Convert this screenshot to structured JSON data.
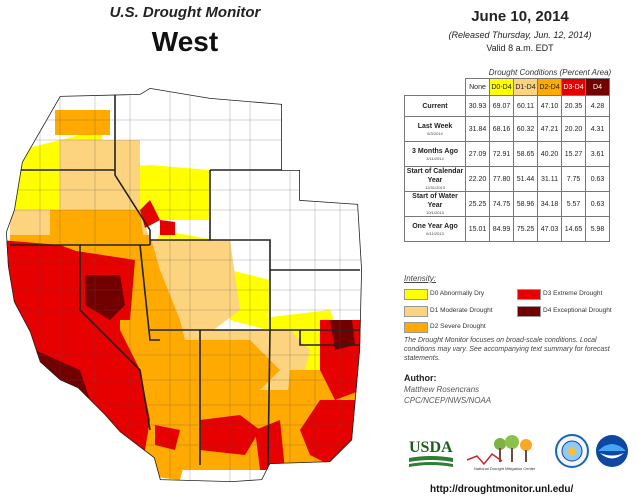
{
  "header": {
    "product": "U.S. Drought Monitor",
    "region": "West",
    "date": "June 10, 2014",
    "released": "(Released Thursday, Jun. 12, 2014)",
    "valid": "Valid  8 a.m. EDT"
  },
  "table": {
    "caption": "Drought Conditions (Percent Area)",
    "columns": [
      "None",
      "D0-D4",
      "D1-D4",
      "D2-D4",
      "D3-D4",
      "D4"
    ],
    "column_colors": [
      "#ffffff",
      "#ffff00",
      "#fcd37f",
      "#ffaa00",
      "#e60000",
      "#730000"
    ],
    "rows": [
      {
        "label": "Current",
        "sub": "",
        "values": [
          "30.93",
          "69.07",
          "60.11",
          "47.10",
          "20.35",
          "4.28"
        ]
      },
      {
        "label": "Last Week",
        "sub": "6/3/2014",
        "values": [
          "31.84",
          "68.16",
          "60.32",
          "47.21",
          "20.20",
          "4.31"
        ]
      },
      {
        "label": "3 Months Ago",
        "sub": "3/11/2014",
        "values": [
          "27.09",
          "72.91",
          "58.65",
          "40.20",
          "15.27",
          "3.61"
        ]
      },
      {
        "label": "Start of Calendar Year",
        "sub": "12/31/2013",
        "values": [
          "22.20",
          "77.80",
          "51.44",
          "31.11",
          "7.75",
          "0.63"
        ]
      },
      {
        "label": "Start of Water Year",
        "sub": "10/1/2013",
        "values": [
          "25.25",
          "74.75",
          "58.96",
          "34.18",
          "5.57",
          "0.63"
        ]
      },
      {
        "label": "One Year Ago",
        "sub": "6/11/2013",
        "values": [
          "15.01",
          "84.99",
          "75.25",
          "47.03",
          "14.65",
          "5.98"
        ]
      }
    ]
  },
  "legend": {
    "title": "Intensity:",
    "items": [
      {
        "label": "D0 Abnormally Dry",
        "color": "#ffff00"
      },
      {
        "label": "D1 Moderate Drought",
        "color": "#fcd37f"
      },
      {
        "label": "D2 Severe Drought",
        "color": "#ffaa00"
      },
      {
        "label": "D3 Extreme Drought",
        "color": "#e60000"
      },
      {
        "label": "D4 Exceptional Drought",
        "color": "#730000"
      }
    ]
  },
  "note": "The Drought Monitor focuses on broad-scale conditions. Local conditions may vary. See accompanying text summary for forecast statements.",
  "author": {
    "label": "Author:",
    "name": "Matthew Rosencrans",
    "org": "CPC/NCEP/NWS/NOAA"
  },
  "logos": {
    "usda": "USDA",
    "ndmc": "National Drought Mitigation Center"
  },
  "url": "http://droughtmonitor.unl.edu/"
}
